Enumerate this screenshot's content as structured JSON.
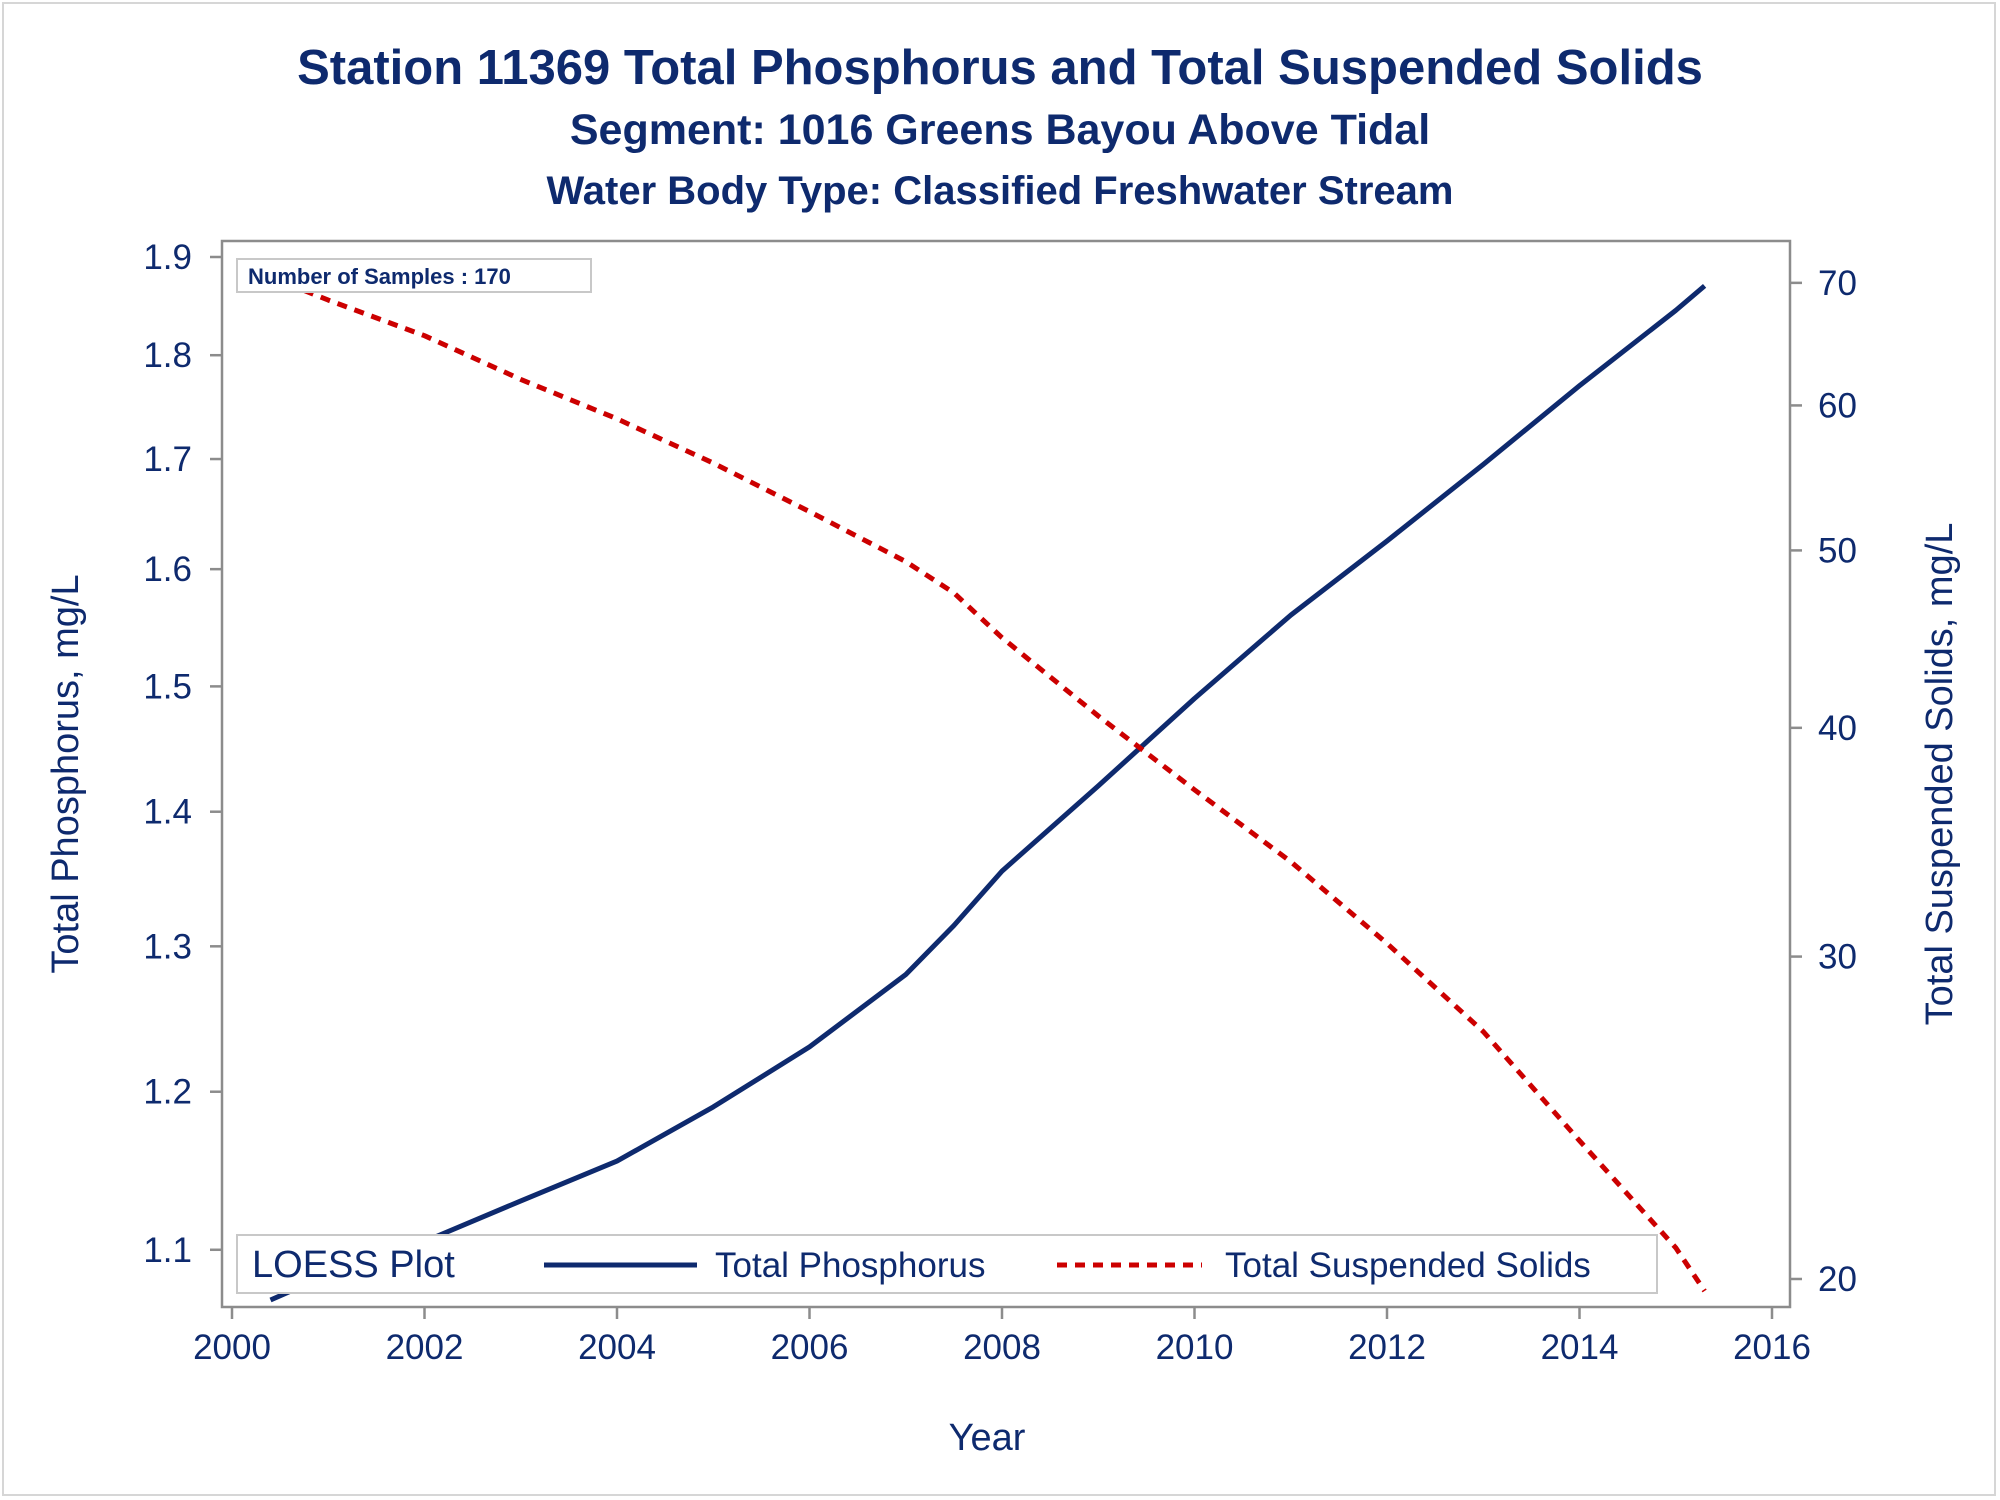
{
  "chart_data": {
    "type": "line",
    "title": "Station 11369  Total Phosphorus and Total Suspended Solids",
    "subtitle": "Segment: 1016  Greens Bayou Above Tidal",
    "subtitle2": "Water Body Type: Classified Freshwater Stream",
    "xlabel": "Year",
    "ylabel": "Total Phosphorus, mg/L",
    "y2label": "Total Suspended Solids, mg/L",
    "xlim": [
      2000,
      2016
    ],
    "xticks": [
      "2000",
      "2002",
      "2004",
      "2006",
      "2008",
      "2010",
      "2012",
      "2014",
      "2016"
    ],
    "ylim": [
      1.07,
      1.9
    ],
    "yscale": "log",
    "yticks": [
      "1.1",
      "1.2",
      "1.3",
      "1.4",
      "1.5",
      "1.6",
      "1.7",
      "1.8",
      "1.9"
    ],
    "y2lim": [
      19.7,
      71.5
    ],
    "y2scale": "log",
    "y2ticks": [
      "20",
      "30",
      "40",
      "50",
      "60",
      "70"
    ],
    "grid": false,
    "annotation": "Number of Samples : 170",
    "legend": {
      "title": "LOESS Plot",
      "position": "bottom-inside",
      "entries": [
        "Total Phosphorus",
        "Total Suspended Solids"
      ]
    },
    "series": [
      {
        "name": "Total Phosphorus",
        "axis": "left",
        "color": "#0e2a6e",
        "style": "solid",
        "x": [
          2000.4,
          2001.0,
          2002.0,
          2003.0,
          2004.0,
          2005.0,
          2006.0,
          2007.0,
          2007.5,
          2008.0,
          2009.0,
          2010.0,
          2011.0,
          2012.0,
          2013.0,
          2014.0,
          2015.0,
          2015.3
        ],
        "values": [
          1.07,
          1.085,
          1.105,
          1.13,
          1.155,
          1.19,
          1.23,
          1.28,
          1.315,
          1.355,
          1.42,
          1.49,
          1.56,
          1.625,
          1.695,
          1.77,
          1.845,
          1.87
        ]
      },
      {
        "name": "Total Suspended Solids",
        "axis": "right",
        "color": "#cc0000",
        "style": "dashed",
        "x": [
          2000.4,
          2001.0,
          2002.0,
          2003.0,
          2004.0,
          2005.0,
          2006.0,
          2007.0,
          2007.5,
          2008.0,
          2009.0,
          2010.0,
          2011.0,
          2012.0,
          2013.0,
          2014.0,
          2015.0,
          2015.3
        ],
        "values": [
          70.5,
          68.5,
          65.5,
          62.0,
          59.0,
          55.8,
          52.5,
          49.3,
          47.4,
          44.8,
          40.6,
          37.0,
          33.8,
          30.5,
          27.3,
          23.8,
          20.8,
          19.7
        ]
      }
    ]
  }
}
